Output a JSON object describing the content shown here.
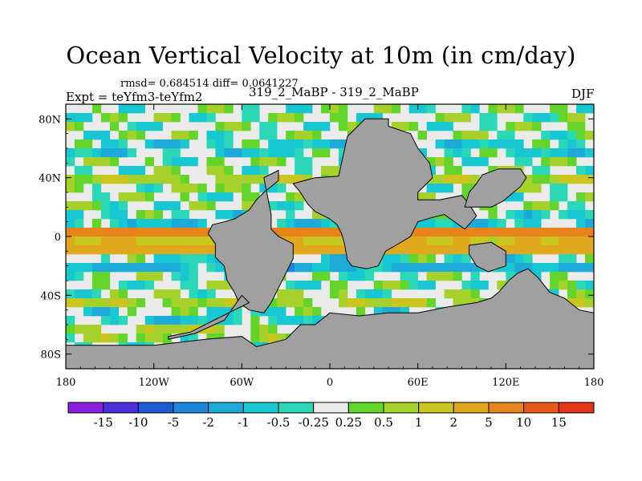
{
  "chart_data": {
    "type": "heatmap",
    "title": "Ocean Vertical Velocity at 10m (in cm/day)",
    "stats_label": "rmsd= 0.684514 diff= 0.0641227",
    "left_label": "Expt = teYfm3-teYfm2",
    "center_label": "319_2_MaBP - 319_2_MaBP",
    "right_label": "DJF",
    "xlim": [
      -180,
      180
    ],
    "ylim": [
      -90,
      90
    ],
    "x_ticks": [
      {
        "value": -180,
        "label": "180"
      },
      {
        "value": -120,
        "label": "120W"
      },
      {
        "value": -60,
        "label": "60W"
      },
      {
        "value": 0,
        "label": "0"
      },
      {
        "value": 60,
        "label": "60E"
      },
      {
        "value": 120,
        "label": "120E"
      },
      {
        "value": 180,
        "label": "180"
      }
    ],
    "y_ticks": [
      {
        "value": 80,
        "label": "80N"
      },
      {
        "value": 40,
        "label": "40N"
      },
      {
        "value": 0,
        "label": "0"
      },
      {
        "value": -40,
        "label": "40S"
      },
      {
        "value": -80,
        "label": "80S"
      }
    ],
    "colorbar": {
      "colors": [
        "#8b1fe0",
        "#4b2fd8",
        "#1b5cd6",
        "#1e86da",
        "#1eaad8",
        "#17c8d2",
        "#2ad8b8",
        "#ebebeb",
        "#62d42a",
        "#a6d02a",
        "#cbc61f",
        "#e0a81c",
        "#e8841c",
        "#e85a1a",
        "#e8341a"
      ],
      "labels": [
        "-15",
        "-10",
        "-5",
        "-2",
        "-1",
        "-0.5",
        "-0.25",
        "0.25",
        "0.5",
        "1",
        "2",
        "5",
        "10",
        "15"
      ]
    },
    "land_color": "#a0a0a0",
    "continent_names": [
      "africa-europe-asia",
      "north-south-america",
      "australia",
      "antarctica"
    ],
    "zonal_bands": [
      {
        "lat": 2,
        "value": 8
      },
      {
        "lat": -10,
        "value": 4
      },
      {
        "lat": -18,
        "value": -2
      },
      {
        "lat": 10,
        "value": -1
      },
      {
        "lat": 38,
        "value": 0.75
      },
      {
        "lat": 60,
        "value": -0.75
      },
      {
        "lat": -45,
        "value": 0.75
      },
      {
        "lat": -55,
        "value": -0.75
      },
      {
        "lat": -65,
        "value": 0.75
      }
    ]
  }
}
